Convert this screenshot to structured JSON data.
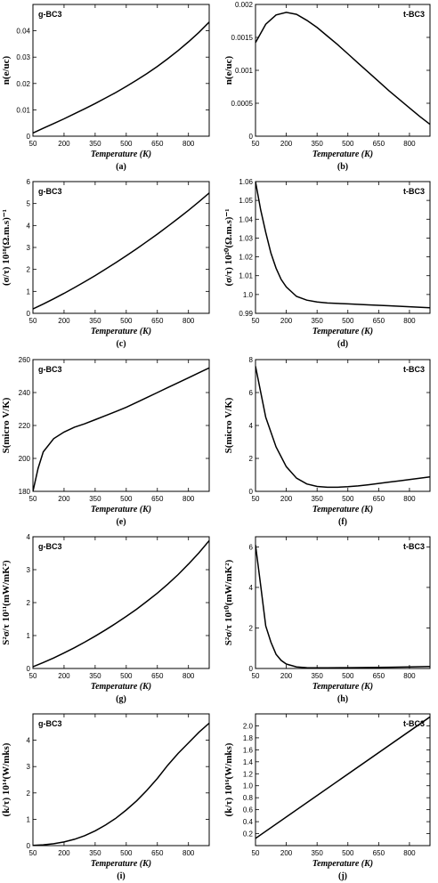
{
  "chart_data": [
    {
      "type": "line",
      "material": "g-BC3",
      "caption": "(a)",
      "xlabel": "Temperature  (K)",
      "ylabel": "n(e/uc)",
      "xlim": [
        50,
        900
      ],
      "ylim": [
        0,
        0.05
      ],
      "xticks": [
        "50",
        "200",
        "350",
        "500",
        "650",
        "800"
      ],
      "yticks": [
        "0",
        "0.01",
        "0.02",
        "0.03",
        "0.04"
      ],
      "x": [
        50,
        100,
        150,
        200,
        250,
        300,
        350,
        400,
        450,
        500,
        550,
        600,
        650,
        700,
        750,
        800,
        850,
        900
      ],
      "y": [
        0.0012,
        0.003,
        0.0048,
        0.0066,
        0.0085,
        0.0104,
        0.0124,
        0.0145,
        0.0166,
        0.0189,
        0.0213,
        0.0238,
        0.0265,
        0.0294,
        0.0325,
        0.0358,
        0.0394,
        0.0433
      ]
    },
    {
      "type": "line",
      "material": "t-BC3",
      "caption": "(b)",
      "xlabel": "Temperature  (K)",
      "ylabel": "n(e/uc)",
      "xlim": [
        50,
        900
      ],
      "ylim": [
        0,
        0.002
      ],
      "xticks": [
        "50",
        "200",
        "350",
        "500",
        "650",
        "800"
      ],
      "yticks": [
        "0",
        "0.0005",
        "0.001",
        "0.0015",
        "0.002"
      ],
      "x": [
        50,
        100,
        150,
        200,
        250,
        300,
        350,
        400,
        450,
        500,
        550,
        600,
        650,
        700,
        750,
        800,
        850,
        900
      ],
      "y": [
        0.00142,
        0.0017,
        0.00184,
        0.00188,
        0.00185,
        0.00176,
        0.00165,
        0.00152,
        0.00139,
        0.00125,
        0.00111,
        0.00097,
        0.00083,
        0.00069,
        0.00056,
        0.00043,
        0.0003,
        0.00018
      ]
    },
    {
      "type": "line",
      "material": "g-BC3",
      "caption": "(c)",
      "xlabel": "Temperature  (K)",
      "ylabel": "(σ/τ) 10¹⁸(Ω.m.s)⁻¹",
      "xlim": [
        50,
        900
      ],
      "ylim": [
        0,
        6
      ],
      "xticks": [
        "50",
        "200",
        "350",
        "500",
        "650",
        "800"
      ],
      "yticks": [
        "0",
        "1",
        "2",
        "3",
        "4",
        "5",
        "6"
      ],
      "x": [
        50,
        100,
        150,
        200,
        250,
        300,
        350,
        400,
        450,
        500,
        550,
        600,
        650,
        700,
        750,
        800,
        850,
        900
      ],
      "y": [
        0.2,
        0.42,
        0.66,
        0.91,
        1.17,
        1.44,
        1.72,
        2.01,
        2.31,
        2.62,
        2.94,
        3.27,
        3.61,
        3.96,
        4.32,
        4.69,
        5.08,
        5.48
      ]
    },
    {
      "type": "line",
      "material": "t-BC3",
      "caption": "(d)",
      "xlabel": "Temperature  (K)",
      "ylabel": "(σ/τ) 10²⁰(Ω.m.s)⁻¹",
      "xlim": [
        50,
        900
      ],
      "ylim": [
        0.99,
        1.06
      ],
      "xticks": [
        "50",
        "200",
        "350",
        "500",
        "650",
        "800"
      ],
      "yticks": [
        "0.99",
        "1.0",
        "1.01",
        "1.02",
        "1.03",
        "1.04",
        "1.05",
        "1.06"
      ],
      "x": [
        50,
        75,
        100,
        125,
        150,
        175,
        200,
        250,
        300,
        350,
        400,
        500,
        600,
        700,
        800,
        900
      ],
      "y": [
        1.06,
        1.045,
        1.033,
        1.022,
        1.014,
        1.008,
        1.004,
        0.999,
        0.997,
        0.996,
        0.9955,
        0.995,
        0.9945,
        0.994,
        0.9935,
        0.993
      ]
    },
    {
      "type": "line",
      "material": "g-BC3",
      "caption": "(e)",
      "xlabel": "Temperature  (K)",
      "ylabel": "S(micro V/K)",
      "xlim": [
        50,
        900
      ],
      "ylim": [
        180,
        260
      ],
      "xticks": [
        "50",
        "200",
        "350",
        "500",
        "650",
        "800"
      ],
      "yticks": [
        "180",
        "200",
        "220",
        "240",
        "260"
      ],
      "x": [
        50,
        75,
        100,
        150,
        200,
        250,
        300,
        350,
        400,
        450,
        500,
        550,
        600,
        650,
        700,
        750,
        800,
        850,
        900
      ],
      "y": [
        180,
        194,
        204,
        212,
        216,
        219,
        221,
        223.5,
        226,
        228.5,
        231,
        234,
        237,
        240,
        243,
        246,
        249,
        252,
        255
      ]
    },
    {
      "type": "line",
      "material": "t-BC3",
      "caption": "(f)",
      "xlabel": "Temperature  (K)",
      "ylabel": "S(micro V/K)",
      "xlim": [
        50,
        900
      ],
      "ylim": [
        0,
        8
      ],
      "xticks": [
        "50",
        "200",
        "350",
        "500",
        "650",
        "800"
      ],
      "yticks": [
        "0",
        "2",
        "4",
        "6",
        "8"
      ],
      "x": [
        50,
        100,
        150,
        200,
        250,
        300,
        350,
        400,
        450,
        500,
        550,
        600,
        650,
        700,
        750,
        800,
        850,
        900
      ],
      "y": [
        7.6,
        4.5,
        2.7,
        1.5,
        0.8,
        0.45,
        0.3,
        0.25,
        0.25,
        0.28,
        0.33,
        0.4,
        0.48,
        0.56,
        0.64,
        0.72,
        0.8,
        0.88
      ]
    },
    {
      "type": "line",
      "material": "g-BC3",
      "caption": "(g)",
      "xlabel": "Temperature  (K)",
      "ylabel": "S²σ/τ 10¹¹(mW/mK²)",
      "xlim": [
        50,
        900
      ],
      "ylim": [
        0,
        4
      ],
      "xticks": [
        "50",
        "200",
        "350",
        "500",
        "650",
        "800"
      ],
      "yticks": [
        "0",
        "1",
        "2",
        "3",
        "4"
      ],
      "x": [
        50,
        100,
        150,
        200,
        250,
        300,
        350,
        400,
        450,
        500,
        550,
        600,
        650,
        700,
        750,
        800,
        850,
        900
      ],
      "y": [
        0.05,
        0.18,
        0.32,
        0.47,
        0.63,
        0.8,
        0.98,
        1.17,
        1.37,
        1.58,
        1.8,
        2.04,
        2.29,
        2.56,
        2.85,
        3.17,
        3.51,
        3.88
      ]
    },
    {
      "type": "line",
      "material": "t-BC3",
      "caption": "(h)",
      "xlabel": "Temperature  (K)",
      "ylabel": "S²σ/τ 10¹⁰(mW/mK²)",
      "xlim": [
        50,
        900
      ],
      "ylim": [
        0,
        6.5
      ],
      "xticks": [
        "50",
        "200",
        "350",
        "500",
        "650",
        "800"
      ],
      "yticks": [
        "0",
        "2",
        "4",
        "6"
      ],
      "x": [
        50,
        75,
        100,
        125,
        150,
        175,
        200,
        250,
        300,
        350,
        400,
        500,
        600,
        700,
        800,
        900
      ],
      "y": [
        6.1,
        4.1,
        2.1,
        1.3,
        0.7,
        0.4,
        0.22,
        0.08,
        0.04,
        0.03,
        0.03,
        0.04,
        0.05,
        0.06,
        0.08,
        0.1
      ]
    },
    {
      "type": "line",
      "material": "g-BC3",
      "caption": "(i)",
      "xlabel": "Temperature  (K)",
      "ylabel": "(k/τ) 10¹⁴(W/mks)",
      "xlim": [
        50,
        900
      ],
      "ylim": [
        0,
        5
      ],
      "xticks": [
        "50",
        "200",
        "350",
        "500",
        "650",
        "800"
      ],
      "yticks": [
        "0",
        "1",
        "2",
        "3",
        "4"
      ],
      "x": [
        50,
        100,
        150,
        200,
        250,
        300,
        350,
        400,
        450,
        500,
        550,
        600,
        650,
        700,
        750,
        800,
        850,
        900
      ],
      "y": [
        0.01,
        0.03,
        0.07,
        0.14,
        0.24,
        0.38,
        0.56,
        0.78,
        1.04,
        1.35,
        1.7,
        2.1,
        2.55,
        3.05,
        3.5,
        3.9,
        4.3,
        4.65
      ]
    },
    {
      "type": "line",
      "material": "t-BC3",
      "caption": "(j)",
      "xlabel": "Temperature  (K)",
      "ylabel": "(k/τ) 10¹⁶(W/mks)",
      "xlim": [
        50,
        900
      ],
      "ylim": [
        0,
        2.2
      ],
      "xticks": [
        "50",
        "200",
        "350",
        "500",
        "650",
        "800"
      ],
      "yticks": [
        "0.2",
        "0.4",
        "0.6",
        "0.8",
        "1.0",
        "1.2",
        "1.4",
        "1.6",
        "1.8",
        "2.0"
      ],
      "x": [
        50,
        900
      ],
      "y": [
        0.12,
        2.15
      ]
    }
  ]
}
